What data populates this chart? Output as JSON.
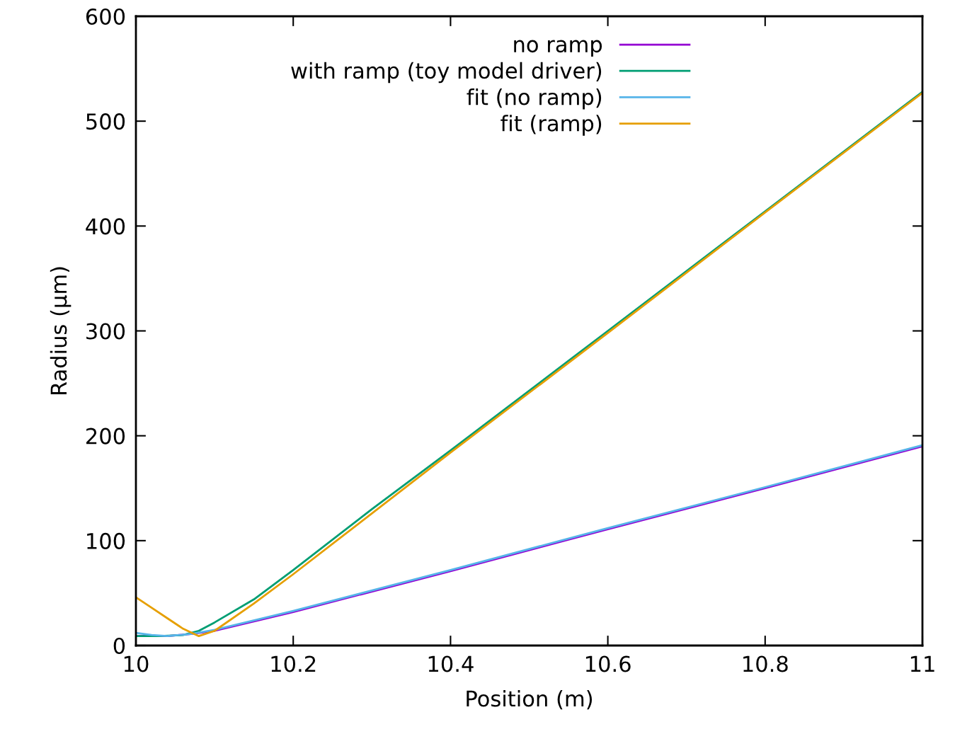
{
  "chart_data": {
    "type": "line",
    "xlabel": "Position (m)",
    "ylabel": "Radius (µm)",
    "xlim": [
      10,
      11
    ],
    "xticks": [
      10,
      10.2,
      10.4,
      10.6,
      10.8,
      11
    ],
    "ylim": [
      0,
      600
    ],
    "yticks": [
      0,
      100,
      200,
      300,
      400,
      500,
      600
    ],
    "grid": false,
    "legend": "top",
    "line_style": "solid",
    "marker": "none",
    "series": [
      {
        "name": "no ramp",
        "color": "#9400d3",
        "x": [
          10,
          10.04,
          10.07,
          10.1,
          10.2,
          10.4,
          10.6,
          10.8,
          11
        ],
        "values": [
          9,
          9,
          11,
          14,
          32,
          71,
          111,
          150,
          190
        ]
      },
      {
        "name": "with ramp (toy model driver)",
        "color": "#009e73",
        "x": [
          10,
          10.03,
          10.06,
          10.08,
          10.1,
          10.15,
          10.2,
          10.3,
          10.4,
          10.6,
          10.8,
          11
        ],
        "values": [
          9,
          9,
          10,
          14,
          22,
          44,
          72,
          130,
          186,
          300,
          414,
          528
        ]
      },
      {
        "name": "fit (no ramp)",
        "color": "#56b4e9",
        "x": [
          10,
          10.02,
          10.04,
          10.07,
          10.1,
          10.2,
          10.4,
          10.6,
          10.8,
          11
        ],
        "values": [
          12,
          10,
          9,
          11,
          15,
          33,
          72,
          112,
          151,
          191
        ]
      },
      {
        "name": "fit (ramp)",
        "color": "#e69f00",
        "x": [
          10,
          10.02,
          10.04,
          10.06,
          10.08,
          10.1,
          10.15,
          10.2,
          10.3,
          10.4,
          10.6,
          10.8,
          11
        ],
        "values": [
          46,
          36,
          26,
          16,
          9,
          14,
          40,
          68,
          126,
          184,
          298,
          413,
          527
        ]
      }
    ]
  }
}
